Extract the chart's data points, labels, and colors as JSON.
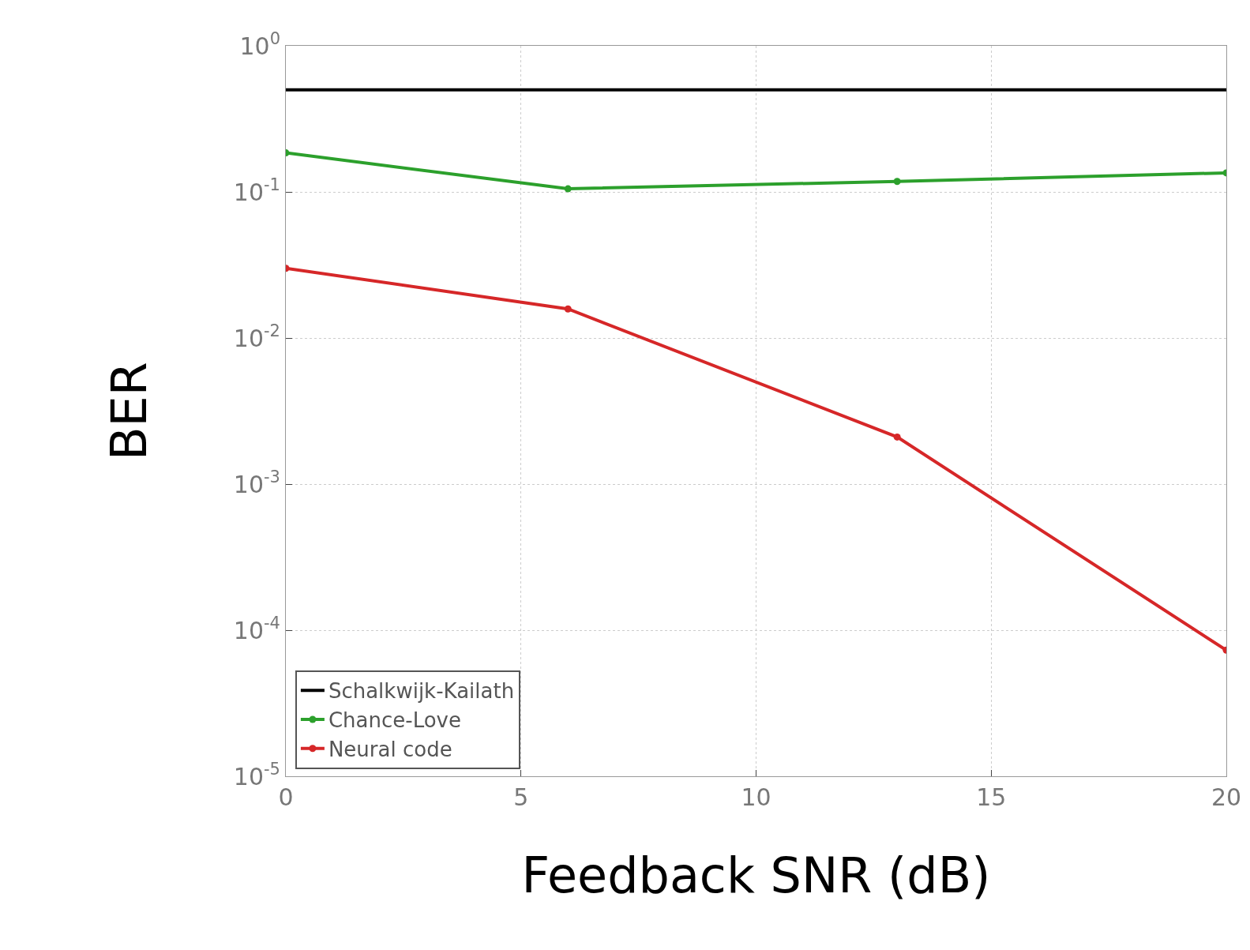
{
  "chart_data": {
    "type": "line",
    "xlabel": "Feedback SNR (dB)",
    "ylabel": "BER",
    "x": [
      0,
      6,
      13,
      20
    ],
    "series": [
      {
        "name": "Schalkwijk-Kailath",
        "color": "#000000",
        "values": [
          0.5,
          0.5,
          0.5,
          0.5
        ],
        "marker": "none"
      },
      {
        "name": "Chance-Love",
        "color": "#2ca02c",
        "values": [
          0.185,
          0.105,
          0.118,
          0.135
        ]
      },
      {
        "name": "Neural code",
        "color": "#d62728",
        "values": [
          0.03,
          0.0158,
          0.0021,
          7.3e-05
        ]
      }
    ],
    "log": "y",
    "xlim": [
      0,
      20
    ],
    "ylim": [
      1e-05,
      1
    ],
    "xticks": [
      0,
      5,
      10,
      15,
      20
    ],
    "yticks": [
      {
        "value": 1,
        "label": "10$^{0}$"
      },
      {
        "value": 0.1,
        "label": "10$^{-1}$"
      },
      {
        "value": 0.01,
        "label": "10$^{-2}$"
      },
      {
        "value": 0.001,
        "label": "10$^{-3}$"
      },
      {
        "value": 0.0001,
        "label": "10$^{-4}$"
      },
      {
        "value": 1e-05,
        "label": "10$^{-5}$"
      }
    ],
    "grid": true,
    "legend": "bottom left",
    "marker": "circle",
    "line_style": "solid"
  }
}
